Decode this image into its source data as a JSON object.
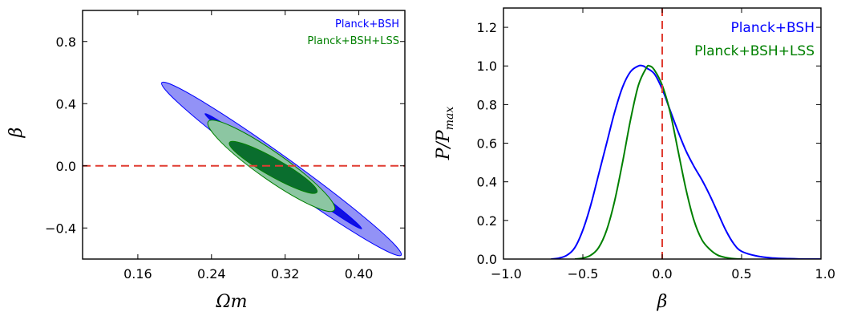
{
  "chart_data": [
    {
      "type": "contour",
      "xlabel": "Ωm",
      "ylabel": "β",
      "xlim": [
        0.1,
        0.45
      ],
      "ylim": [
        -0.6,
        1.0
      ],
      "xticks": [
        0.16,
        0.24,
        0.32,
        0.4
      ],
      "xtick_labels": [
        "0.16",
        "0.24",
        "0.32",
        "0.40"
      ],
      "yticks": [
        -0.4,
        0.0,
        0.4,
        0.8
      ],
      "ytick_labels": [
        "−0.4",
        "0.0",
        "0.4",
        "0.8"
      ],
      "reference_line": {
        "axis": "y",
        "value": 0.0,
        "style": "dashed",
        "color": "#e03c31"
      },
      "legend": {
        "placement": "top-right",
        "entries": [
          {
            "name": "Planck+BSH",
            "color": "#0000ff"
          },
          {
            "name": "Planck+BSH+LSS",
            "color": "#008000"
          }
        ]
      },
      "series": [
        {
          "name": "Planck+BSH",
          "color": "#0000ff",
          "contours": [
            {
              "level": "95%",
              "center": [
                0.316,
                -0.02
              ],
              "extent_x": [
                0.185,
                0.445
              ],
              "extent_y": [
                -0.58,
                0.53
              ]
            },
            {
              "level": "68%",
              "center": [
                0.318,
                -0.035
              ],
              "extent_x": [
                0.235,
                0.405
              ],
              "extent_y": [
                -0.44,
                0.3
              ]
            }
          ]
        },
        {
          "name": "Planck+BSH+LSS",
          "color": "#008000",
          "contours": [
            {
              "level": "95%",
              "center": [
                0.305,
                0.0
              ],
              "extent_x": [
                0.238,
                0.375
              ],
              "extent_y": [
                -0.28,
                0.29
              ]
            },
            {
              "level": "68%",
              "center": [
                0.307,
                -0.01
              ],
              "extent_x": [
                0.265,
                0.36
              ],
              "extent_y": [
                -0.2,
                0.12
              ]
            }
          ]
        }
      ]
    },
    {
      "type": "line",
      "xlabel": "β",
      "ylabel": "P/Pmax",
      "ylabel_main": "P/P",
      "ylabel_sub": "max",
      "xlim": [
        -1.0,
        1.0
      ],
      "ylim": [
        0.0,
        1.3
      ],
      "xticks": [
        -1.0,
        -0.5,
        0.0,
        0.5,
        1.0
      ],
      "xtick_labels": [
        "−1.0",
        "−0.5",
        "0.0",
        "0.5",
        "1.0"
      ],
      "yticks": [
        0.0,
        0.2,
        0.4,
        0.6,
        0.8,
        1.0,
        1.2
      ],
      "ytick_labels": [
        "0.0",
        "0.2",
        "0.4",
        "0.6",
        "0.8",
        "1.0",
        "1.2"
      ],
      "reference_line": {
        "axis": "x",
        "value": 0.0,
        "style": "dashed",
        "color": "#e03c31"
      },
      "legend": {
        "placement": "top-right",
        "entries": [
          {
            "name": "Planck+BSH",
            "color": "#0000ff"
          },
          {
            "name": "Planck+BSH+LSS",
            "color": "#008000"
          }
        ]
      },
      "series": [
        {
          "name": "Planck+BSH",
          "color": "#0000ff",
          "x": [
            -0.7,
            -0.65,
            -0.6,
            -0.55,
            -0.5,
            -0.45,
            -0.4,
            -0.35,
            -0.3,
            -0.25,
            -0.2,
            -0.15,
            -0.12,
            -0.1,
            -0.05,
            0.0,
            0.05,
            0.1,
            0.15,
            0.2,
            0.25,
            0.3,
            0.35,
            0.4,
            0.45,
            0.5,
            0.6,
            0.7,
            0.8,
            0.9,
            1.0
          ],
          "values": [
            0.0,
            0.005,
            0.02,
            0.06,
            0.15,
            0.28,
            0.44,
            0.6,
            0.76,
            0.89,
            0.97,
            1.0,
            1.0,
            0.99,
            0.96,
            0.88,
            0.77,
            0.66,
            0.56,
            0.48,
            0.41,
            0.33,
            0.24,
            0.15,
            0.08,
            0.04,
            0.015,
            0.005,
            0.002,
            0.0,
            0.0
          ]
        },
        {
          "name": "Planck+BSH+LSS",
          "color": "#008000",
          "x": [
            -0.55,
            -0.5,
            -0.45,
            -0.4,
            -0.35,
            -0.3,
            -0.25,
            -0.2,
            -0.15,
            -0.1,
            -0.08,
            -0.05,
            0.0,
            0.05,
            0.1,
            0.15,
            0.2,
            0.25,
            0.3,
            0.35,
            0.4,
            0.45,
            0.5
          ],
          "values": [
            0.0,
            0.005,
            0.02,
            0.06,
            0.15,
            0.3,
            0.5,
            0.72,
            0.9,
            0.99,
            1.0,
            0.98,
            0.9,
            0.76,
            0.56,
            0.36,
            0.2,
            0.1,
            0.05,
            0.02,
            0.008,
            0.002,
            0.0
          ]
        }
      ]
    }
  ]
}
